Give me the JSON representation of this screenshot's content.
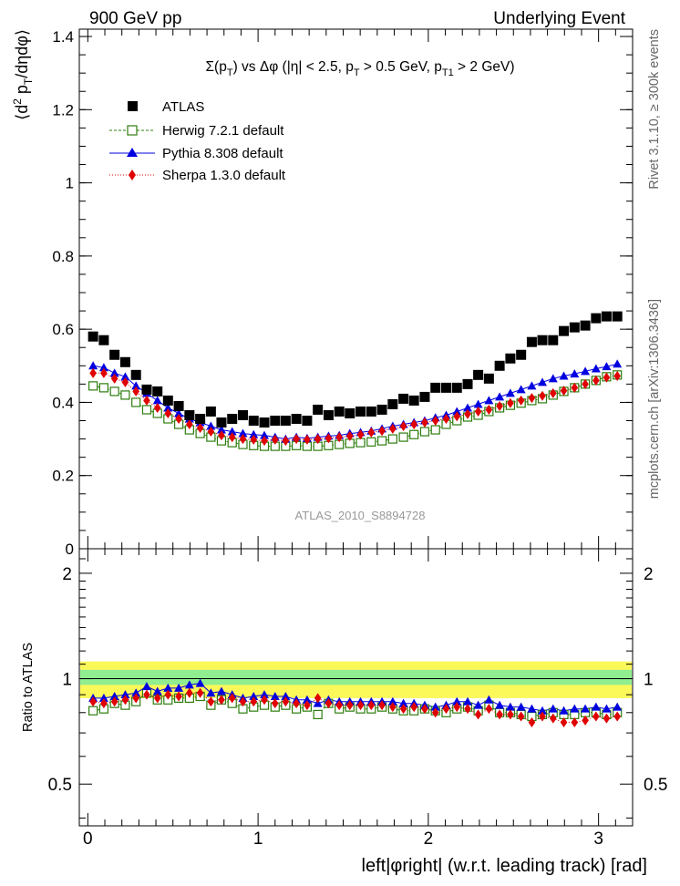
{
  "header": {
    "left": "900 GeV pp",
    "right": "Underlying Event"
  },
  "side_labels": {
    "top": "Rivet 3.1.10, ≥ 300k events",
    "bottom": "mcplots.cern.ch [arXiv:1306.3436]"
  },
  "chart_data": [
    {
      "type": "scatter",
      "title": "Σ(p_T) vs Δφ (|η| < 2.5, p_T > 0.5 GeV, p_T1 > 2 GeV)",
      "ylabel": "⟨d² p_T/dηdφ⟩",
      "xlabel": "left|φright| (w.r.t. leading track) [rad]",
      "analysis_tag": "ATLAS_2010_S8894728",
      "xlim": [
        -0.05,
        3.2
      ],
      "ylim": [
        0,
        1.42
      ],
      "yticks": [
        0,
        0.2,
        0.4,
        0.6,
        0.8,
        1,
        1.2,
        1.4
      ],
      "ytick_labels": [
        "0",
        "0.2",
        "0.4",
        "0.6",
        "0.8",
        "1",
        "1.2",
        "1.4"
      ],
      "legend_position": "top-left",
      "colors": {
        "atlas": "#000000",
        "herwig": "#2e7d0e",
        "pythia": "#0000e0",
        "sherpa": "#e00000"
      },
      "x": [
        0.031,
        0.094,
        0.157,
        0.22,
        0.283,
        0.346,
        0.409,
        0.471,
        0.534,
        0.597,
        0.66,
        0.723,
        0.785,
        0.848,
        0.911,
        0.974,
        1.037,
        1.1,
        1.162,
        1.225,
        1.288,
        1.351,
        1.414,
        1.477,
        1.539,
        1.602,
        1.665,
        1.728,
        1.791,
        1.854,
        1.916,
        1.979,
        2.042,
        2.105,
        2.168,
        2.231,
        2.293,
        2.356,
        2.419,
        2.482,
        2.545,
        2.608,
        2.67,
        2.733,
        2.796,
        2.859,
        2.922,
        2.985,
        3.047,
        3.11
      ],
      "series": [
        {
          "name": "ATLAS",
          "values": [
            0.58,
            0.57,
            0.53,
            0.51,
            0.475,
            0.435,
            0.43,
            0.405,
            0.39,
            0.365,
            0.355,
            0.375,
            0.345,
            0.355,
            0.365,
            0.35,
            0.345,
            0.35,
            0.35,
            0.355,
            0.35,
            0.38,
            0.365,
            0.375,
            0.37,
            0.375,
            0.375,
            0.38,
            0.395,
            0.41,
            0.405,
            0.415,
            0.44,
            0.44,
            0.44,
            0.45,
            0.475,
            0.465,
            0.5,
            0.52,
            0.53,
            0.565,
            0.57,
            0.57,
            0.595,
            0.605,
            0.61,
            0.63,
            0.635,
            0.635
          ]
        },
        {
          "name": "Herwig 7.2.1 default",
          "values": [
            0.445,
            0.44,
            0.43,
            0.42,
            0.4,
            0.38,
            0.37,
            0.355,
            0.34,
            0.325,
            0.315,
            0.305,
            0.295,
            0.29,
            0.285,
            0.282,
            0.28,
            0.28,
            0.28,
            0.282,
            0.28,
            0.28,
            0.282,
            0.285,
            0.288,
            0.29,
            0.292,
            0.295,
            0.3,
            0.305,
            0.312,
            0.32,
            0.325,
            0.34,
            0.35,
            0.36,
            0.365,
            0.375,
            0.385,
            0.392,
            0.398,
            0.405,
            0.41,
            0.42,
            0.43,
            0.44,
            0.45,
            0.46,
            0.47,
            0.475
          ]
        },
        {
          "name": "Pythia 8.308 default",
          "values": [
            0.5,
            0.495,
            0.48,
            0.47,
            0.445,
            0.425,
            0.405,
            0.385,
            0.37,
            0.355,
            0.345,
            0.335,
            0.325,
            0.32,
            0.315,
            0.312,
            0.31,
            0.305,
            0.3,
            0.305,
            0.302,
            0.305,
            0.308,
            0.31,
            0.315,
            0.318,
            0.322,
            0.328,
            0.335,
            0.34,
            0.345,
            0.35,
            0.358,
            0.365,
            0.375,
            0.385,
            0.395,
            0.405,
            0.415,
            0.425,
            0.435,
            0.445,
            0.455,
            0.465,
            0.472,
            0.478,
            0.485,
            0.492,
            0.498,
            0.505
          ]
        },
        {
          "name": "Sherpa 1.3.0 default",
          "values": [
            0.48,
            0.48,
            0.465,
            0.455,
            0.43,
            0.405,
            0.385,
            0.37,
            0.355,
            0.34,
            0.33,
            0.32,
            0.31,
            0.305,
            0.3,
            0.298,
            0.295,
            0.298,
            0.295,
            0.3,
            0.298,
            0.3,
            0.302,
            0.305,
            0.308,
            0.312,
            0.318,
            0.322,
            0.328,
            0.335,
            0.34,
            0.345,
            0.35,
            0.355,
            0.362,
            0.368,
            0.375,
            0.38,
            0.39,
            0.398,
            0.405,
            0.412,
            0.418,
            0.425,
            0.432,
            0.44,
            0.45,
            0.46,
            0.468,
            0.472
          ]
        }
      ]
    },
    {
      "type": "scatter",
      "ylabel": "Ratio to ATLAS",
      "xlabel": "left|φright| (w.r.t. leading track) [rad]",
      "xlim": [
        -0.05,
        3.2
      ],
      "ylim": [
        0.38,
        2.35
      ],
      "ylog": true,
      "xticks": [
        0,
        1,
        2,
        3
      ],
      "xtick_labels": [
        "0",
        "1",
        "2",
        "3"
      ],
      "yticks": [
        0.5,
        1,
        2
      ],
      "ytick_labels": [
        "0.5",
        "1",
        "2"
      ],
      "bands": [
        {
          "name": "total uncertainty",
          "lower": 0.88,
          "upper": 1.12,
          "color": "#fbf85a"
        },
        {
          "name": "statistical uncertainty",
          "lower": 0.96,
          "upper": 1.06,
          "color": "#90ee90"
        }
      ],
      "reference_line": 1,
      "series": [
        {
          "name": "Herwig 7.2.1 default",
          "values": [
            0.81,
            0.82,
            0.85,
            0.84,
            0.86,
            0.91,
            0.87,
            0.87,
            0.88,
            0.88,
            0.89,
            0.84,
            0.87,
            0.85,
            0.82,
            0.83,
            0.84,
            0.83,
            0.84,
            0.82,
            0.83,
            0.79,
            0.85,
            0.82,
            0.83,
            0.82,
            0.82,
            0.83,
            0.82,
            0.81,
            0.81,
            0.82,
            0.81,
            0.8,
            0.82,
            0.83,
            0.81,
            0.84,
            0.8,
            0.8,
            0.79,
            0.78,
            0.79,
            0.8,
            0.79,
            0.79,
            0.8,
            0.8,
            0.79,
            0.8
          ]
        },
        {
          "name": "Pythia 8.308 default",
          "values": [
            0.88,
            0.88,
            0.89,
            0.9,
            0.91,
            0.95,
            0.92,
            0.94,
            0.94,
            0.96,
            0.97,
            0.91,
            0.92,
            0.9,
            0.88,
            0.89,
            0.9,
            0.89,
            0.89,
            0.87,
            0.87,
            0.85,
            0.87,
            0.86,
            0.86,
            0.86,
            0.86,
            0.86,
            0.86,
            0.85,
            0.85,
            0.84,
            0.83,
            0.84,
            0.86,
            0.86,
            0.84,
            0.87,
            0.84,
            0.83,
            0.83,
            0.82,
            0.81,
            0.82,
            0.81,
            0.82,
            0.82,
            0.83,
            0.82,
            0.83
          ]
        },
        {
          "name": "Sherpa 1.3.0 default",
          "values": [
            0.86,
            0.85,
            0.86,
            0.87,
            0.88,
            0.9,
            0.88,
            0.9,
            0.89,
            0.91,
            0.91,
            0.86,
            0.87,
            0.88,
            0.86,
            0.86,
            0.87,
            0.85,
            0.86,
            0.85,
            0.84,
            0.88,
            0.85,
            0.84,
            0.84,
            0.84,
            0.84,
            0.84,
            0.83,
            0.82,
            0.83,
            0.82,
            0.8,
            0.82,
            0.83,
            0.82,
            0.79,
            0.82,
            0.79,
            0.79,
            0.78,
            0.75,
            0.78,
            0.77,
            0.75,
            0.75,
            0.76,
            0.78,
            0.77,
            0.78
          ]
        }
      ]
    }
  ]
}
